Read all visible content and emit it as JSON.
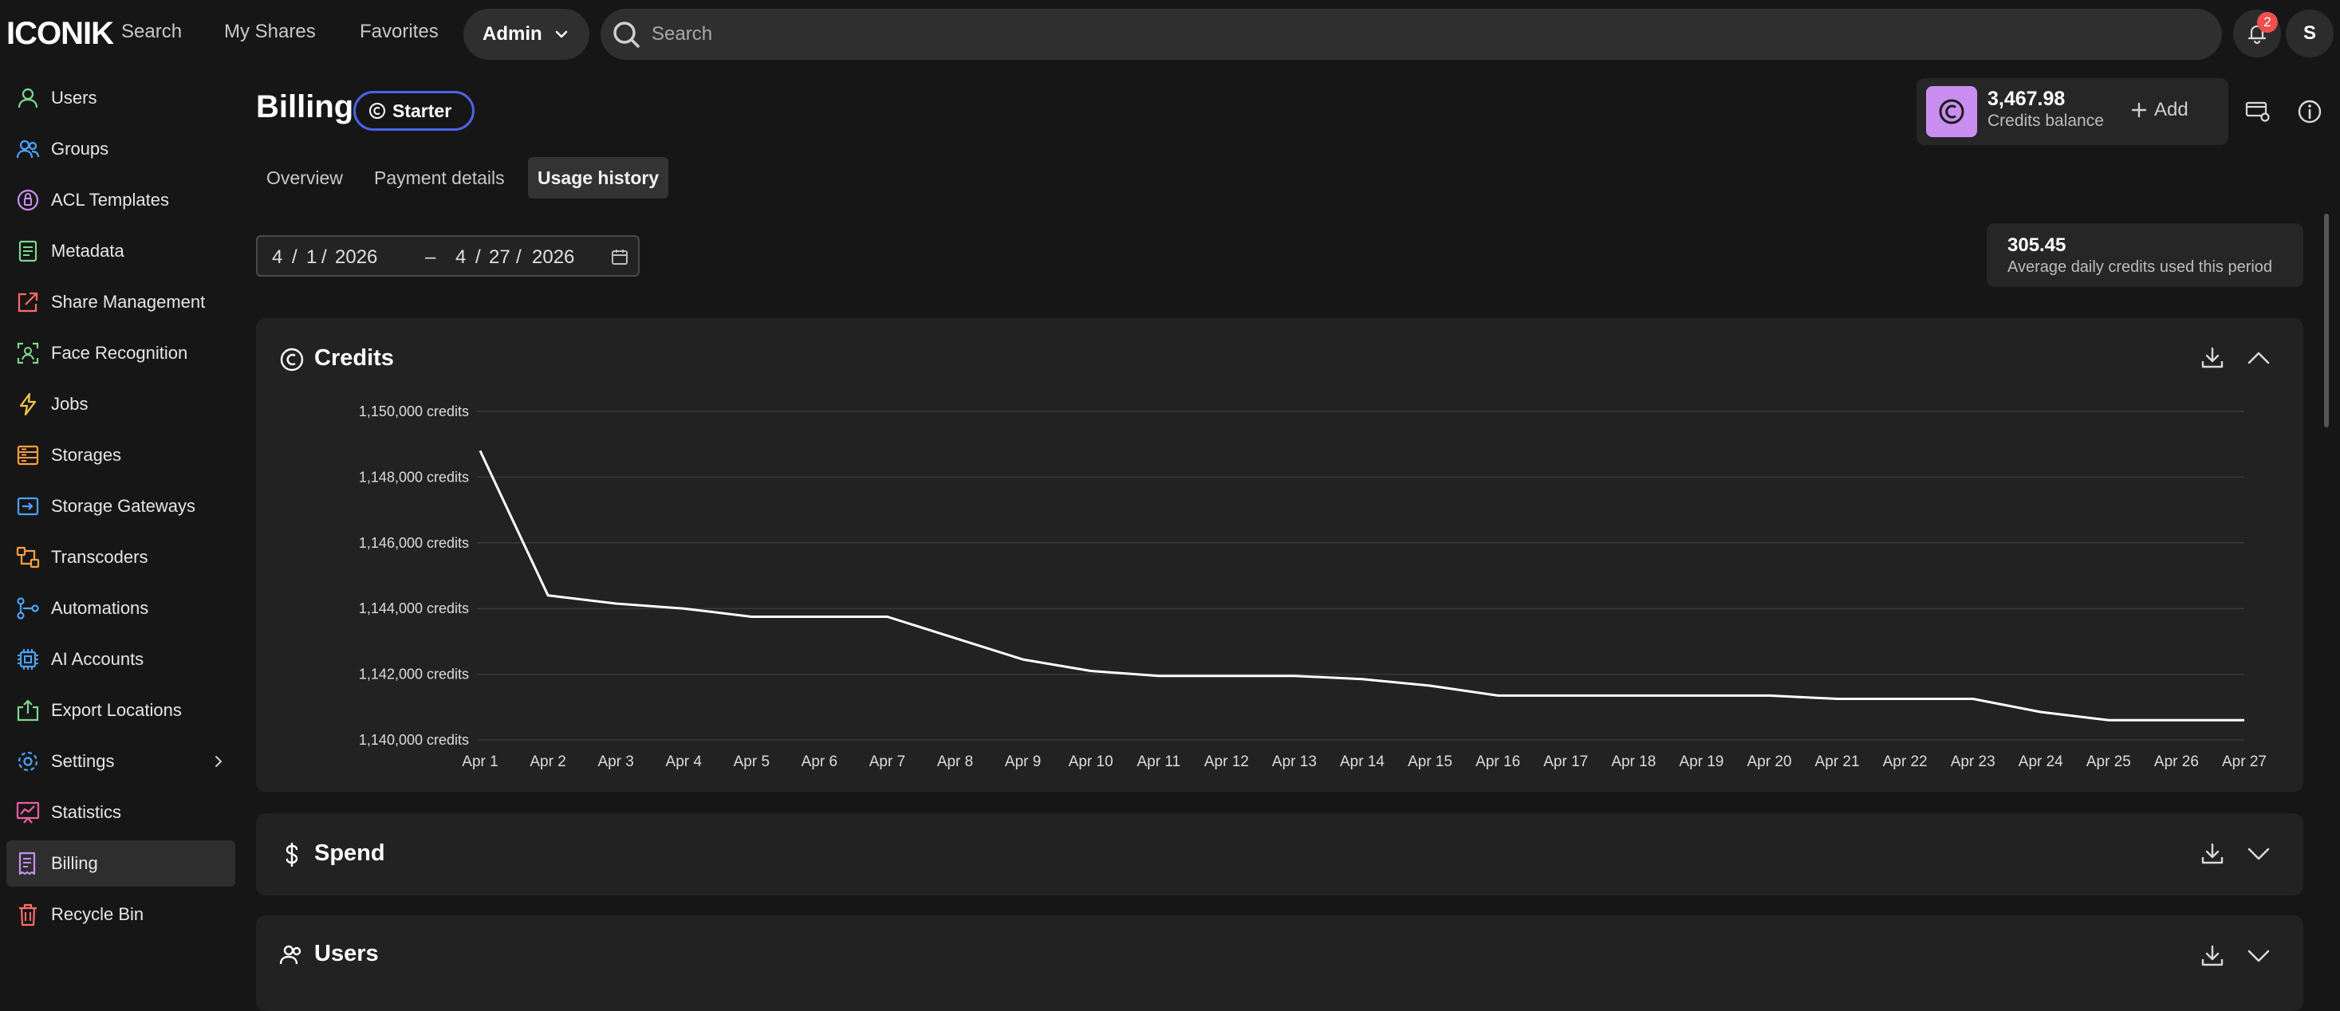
{
  "app": {
    "logo": "ICONIK"
  },
  "topnav": {
    "search": "Search",
    "my_shares": "My Shares",
    "favorites": "Favorites",
    "admin": "Admin"
  },
  "search": {
    "placeholder": "Search"
  },
  "notifications": {
    "count": "2"
  },
  "user": {
    "initial": "S"
  },
  "sidebar": {
    "items": [
      {
        "label": "Users",
        "icon": "user-icon",
        "color": "#7bd88f"
      },
      {
        "label": "Groups",
        "icon": "users-icon",
        "color": "#4da3ff"
      },
      {
        "label": "ACL Templates",
        "icon": "lock-icon",
        "color": "#c98ff0"
      },
      {
        "label": "Metadata",
        "icon": "document-icon",
        "color": "#7bd88f"
      },
      {
        "label": "Share Management",
        "icon": "share-icon",
        "color": "#ff6b6b"
      },
      {
        "label": "Face Recognition",
        "icon": "face-scan-icon",
        "color": "#7bd88f"
      },
      {
        "label": "Jobs",
        "icon": "lightning-icon",
        "color": "#f5c84c"
      },
      {
        "label": "Storages",
        "icon": "storage-icon",
        "color": "#ff9f43"
      },
      {
        "label": "Storage Gateways",
        "icon": "gateway-icon",
        "color": "#4da3ff"
      },
      {
        "label": "Transcoders",
        "icon": "transcoder-icon",
        "color": "#ff9f43"
      },
      {
        "label": "Automations",
        "icon": "automation-icon",
        "color": "#4da3ff"
      },
      {
        "label": "AI Accounts",
        "icon": "chip-icon",
        "color": "#4da3ff"
      },
      {
        "label": "Export Locations",
        "icon": "export-icon",
        "color": "#7bd88f"
      },
      {
        "label": "Settings",
        "icon": "gear-icon",
        "color": "#4da3ff"
      },
      {
        "label": "Statistics",
        "icon": "chart-icon",
        "color": "#ef5da8"
      },
      {
        "label": "Billing",
        "icon": "receipt-icon",
        "color": "#c98ff0"
      },
      {
        "label": "Recycle Bin",
        "icon": "trash-icon",
        "color": "#ff6b6b"
      }
    ],
    "active": "Billing"
  },
  "page": {
    "title": "Billing",
    "plan": "Starter"
  },
  "tabs": [
    "Overview",
    "Payment details",
    "Usage history"
  ],
  "active_tab": "Usage history",
  "credits": {
    "balance": "3,467.98",
    "label": "Credits balance",
    "add_label": "Add"
  },
  "date_range": {
    "start_month": "4",
    "start_day": "1",
    "start_year": "2026",
    "separator": "–",
    "end_month": "4",
    "end_day": "27",
    "end_year": "2026",
    "slash": "/"
  },
  "average": {
    "value": "305.45",
    "label": "Average daily credits used this period"
  },
  "panels": {
    "credits": "Credits",
    "spend": "Spend",
    "users": "Users"
  },
  "chart_data": {
    "type": "line",
    "title": "Credits",
    "unit": "credits",
    "x": [
      "Apr 1",
      "Apr 2",
      "Apr 3",
      "Apr 4",
      "Apr 5",
      "Apr 6",
      "Apr 7",
      "Apr 8",
      "Apr 9",
      "Apr 10",
      "Apr 11",
      "Apr 12",
      "Apr 13",
      "Apr 14",
      "Apr 15",
      "Apr 16",
      "Apr 17",
      "Apr 18",
      "Apr 19",
      "Apr 20",
      "Apr 21",
      "Apr 22",
      "Apr 23",
      "Apr 24",
      "Apr 25",
      "Apr 26",
      "Apr 27"
    ],
    "y": [
      1148800,
      1144400,
      1144150,
      1144000,
      1143750,
      1143750,
      1143750,
      1143100,
      1142450,
      1142100,
      1141950,
      1141950,
      1141950,
      1141850,
      1141650,
      1141350,
      1141350,
      1141350,
      1141350,
      1141350,
      1141250,
      1141250,
      1141250,
      1140850,
      1140600,
      1140600,
      1140600
    ],
    "ylim": [
      1140000,
      1150000
    ],
    "yticks": [
      {
        "value": 1150000,
        "label": "1,150,000 credits"
      },
      {
        "value": 1148000,
        "label": "1,148,000 credits"
      },
      {
        "value": 1146000,
        "label": "1,146,000 credits"
      },
      {
        "value": 1144000,
        "label": "1,144,000 credits"
      },
      {
        "value": 1142000,
        "label": "1,142,000 credits"
      },
      {
        "value": 1140000,
        "label": "1,140,000 credits"
      }
    ],
    "grid": true,
    "line_color": "#ffffff"
  }
}
